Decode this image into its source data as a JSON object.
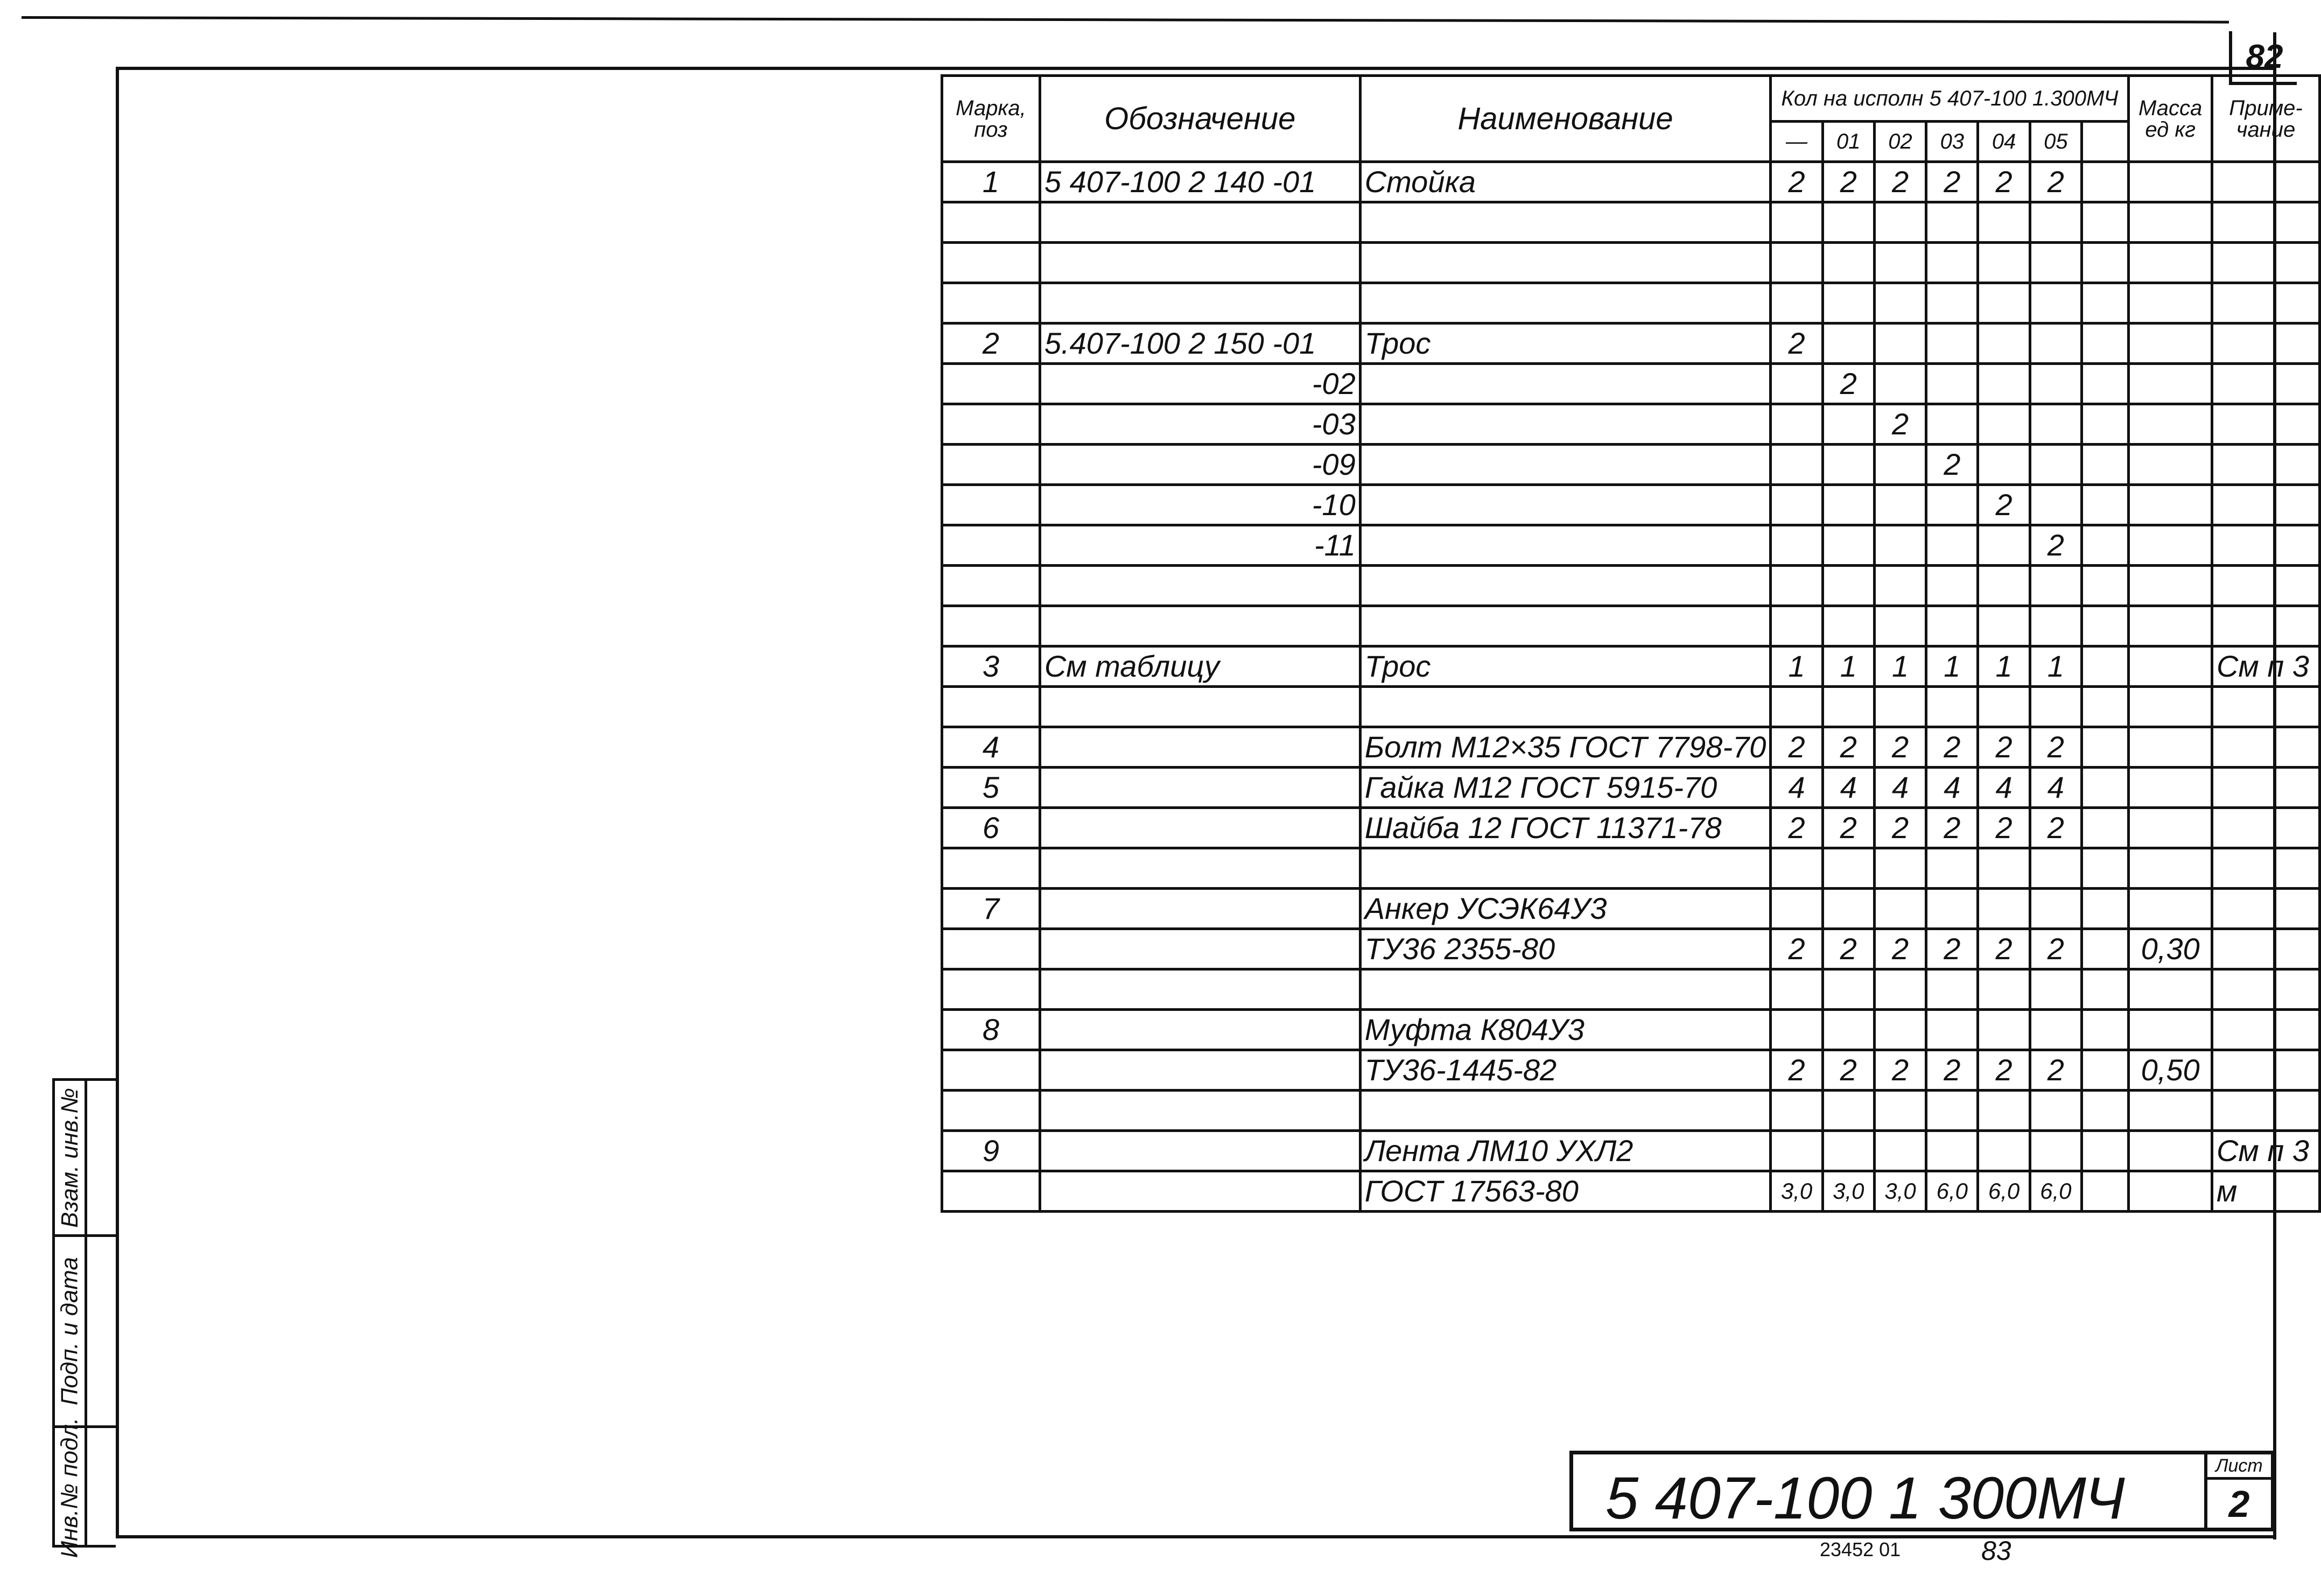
{
  "page_number_top": "82",
  "table": {
    "headers": {
      "pos": "Марка, поз",
      "designation": "Обозначение",
      "name": "Наименование",
      "qty_group": "Кол на исполн 5 407-100 1.300МЧ",
      "qty_cols": [
        "—",
        "01",
        "02",
        "03",
        "04",
        "05",
        ""
      ],
      "mass": "Масса ед кг",
      "note": "Приме-чание"
    },
    "rows": [
      {
        "pos": "1",
        "des": "5 407-100 2 140 -01",
        "name": "Стойка",
        "qty": [
          "2",
          "2",
          "2",
          "2",
          "2",
          "2",
          ""
        ],
        "mass": "",
        "note": ""
      },
      {
        "pos": "",
        "des": "",
        "name": "",
        "qty": [
          "",
          "",
          "",
          "",
          "",
          "",
          ""
        ],
        "mass": "",
        "note": ""
      },
      {
        "pos": "",
        "des": "",
        "name": "",
        "qty": [
          "",
          "",
          "",
          "",
          "",
          "",
          ""
        ],
        "mass": "",
        "note": ""
      },
      {
        "pos": "",
        "des": "",
        "name": "",
        "qty": [
          "",
          "",
          "",
          "",
          "",
          "",
          ""
        ],
        "mass": "",
        "note": ""
      },
      {
        "pos": "2",
        "des": "5.407-100 2 150 -01",
        "name": "Трос",
        "qty": [
          "2",
          "",
          "",
          "",
          "",
          "",
          ""
        ],
        "mass": "",
        "note": ""
      },
      {
        "pos": "",
        "des": "-02",
        "name": "",
        "qty": [
          "",
          "2",
          "",
          "",
          "",
          "",
          ""
        ],
        "mass": "",
        "note": ""
      },
      {
        "pos": "",
        "des": "-03",
        "name": "",
        "qty": [
          "",
          "",
          "2",
          "",
          "",
          "",
          ""
        ],
        "mass": "",
        "note": ""
      },
      {
        "pos": "",
        "des": "-09",
        "name": "",
        "qty": [
          "",
          "",
          "",
          "2",
          "",
          "",
          ""
        ],
        "mass": "",
        "note": ""
      },
      {
        "pos": "",
        "des": "-10",
        "name": "",
        "qty": [
          "",
          "",
          "",
          "",
          "2",
          "",
          ""
        ],
        "mass": "",
        "note": ""
      },
      {
        "pos": "",
        "des": "-11",
        "name": "",
        "qty": [
          "",
          "",
          "",
          "",
          "",
          "2",
          ""
        ],
        "mass": "",
        "note": ""
      },
      {
        "pos": "",
        "des": "",
        "name": "",
        "qty": [
          "",
          "",
          "",
          "",
          "",
          "",
          ""
        ],
        "mass": "",
        "note": ""
      },
      {
        "pos": "",
        "des": "",
        "name": "",
        "qty": [
          "",
          "",
          "",
          "",
          "",
          "",
          ""
        ],
        "mass": "",
        "note": ""
      },
      {
        "pos": "3",
        "des": "См таблицу",
        "name": "Трос",
        "qty": [
          "1",
          "1",
          "1",
          "1",
          "1",
          "1",
          ""
        ],
        "mass": "",
        "note": "См п 3"
      },
      {
        "pos": "",
        "des": "",
        "name": "",
        "qty": [
          "",
          "",
          "",
          "",
          "",
          "",
          ""
        ],
        "mass": "",
        "note": ""
      },
      {
        "pos": "4",
        "des": "",
        "name": "Болт М12×35 ГОСТ 7798-70",
        "qty": [
          "2",
          "2",
          "2",
          "2",
          "2",
          "2",
          ""
        ],
        "mass": "",
        "note": ""
      },
      {
        "pos": "5",
        "des": "",
        "name": "Гайка М12 ГОСТ 5915-70",
        "qty": [
          "4",
          "4",
          "4",
          "4",
          "4",
          "4",
          ""
        ],
        "mass": "",
        "note": ""
      },
      {
        "pos": "6",
        "des": "",
        "name": "Шайба 12 ГОСТ 11371-78",
        "qty": [
          "2",
          "2",
          "2",
          "2",
          "2",
          "2",
          ""
        ],
        "mass": "",
        "note": ""
      },
      {
        "pos": "",
        "des": "",
        "name": "",
        "qty": [
          "",
          "",
          "",
          "",
          "",
          "",
          ""
        ],
        "mass": "",
        "note": ""
      },
      {
        "pos": "7",
        "des": "",
        "name": "Анкер УСЭК64У3",
        "qty": [
          "",
          "",
          "",
          "",
          "",
          "",
          ""
        ],
        "mass": "",
        "note": ""
      },
      {
        "pos": "",
        "des": "",
        "name": "ТУ36 2355-80",
        "qty": [
          "2",
          "2",
          "2",
          "2",
          "2",
          "2",
          ""
        ],
        "mass": "0,30",
        "note": ""
      },
      {
        "pos": "",
        "des": "",
        "name": "",
        "qty": [
          "",
          "",
          "",
          "",
          "",
          "",
          ""
        ],
        "mass": "",
        "note": ""
      },
      {
        "pos": "8",
        "des": "",
        "name": "Муфта К804У3",
        "qty": [
          "",
          "",
          "",
          "",
          "",
          "",
          ""
        ],
        "mass": "",
        "note": ""
      },
      {
        "pos": "",
        "des": "",
        "name": "ТУ36-1445-82",
        "qty": [
          "2",
          "2",
          "2",
          "2",
          "2",
          "2",
          ""
        ],
        "mass": "0,50",
        "note": ""
      },
      {
        "pos": "",
        "des": "",
        "name": "",
        "qty": [
          "",
          "",
          "",
          "",
          "",
          "",
          ""
        ],
        "mass": "",
        "note": ""
      },
      {
        "pos": "9",
        "des": "",
        "name": "Лента ЛМ10 УХЛ2",
        "qty": [
          "",
          "",
          "",
          "",
          "",
          "",
          ""
        ],
        "mass": "",
        "note": "См п 3"
      },
      {
        "pos": "",
        "des": "",
        "name": "ГОСТ 17563-80",
        "qty": [
          "3,0",
          "3,0",
          "3,0",
          "6,0",
          "6,0",
          "6,0",
          ""
        ],
        "mass": "",
        "note": "м"
      }
    ]
  },
  "title_block": {
    "designation": "5 407-100 1 300МЧ",
    "sheet_label": "Лист",
    "sheet_number": "2"
  },
  "archive_number": "23452 01",
  "archive_page": "83",
  "side_stamp": [
    "Инв.№ подл.",
    "Подп. и дата",
    "Взам. инв.№"
  ]
}
